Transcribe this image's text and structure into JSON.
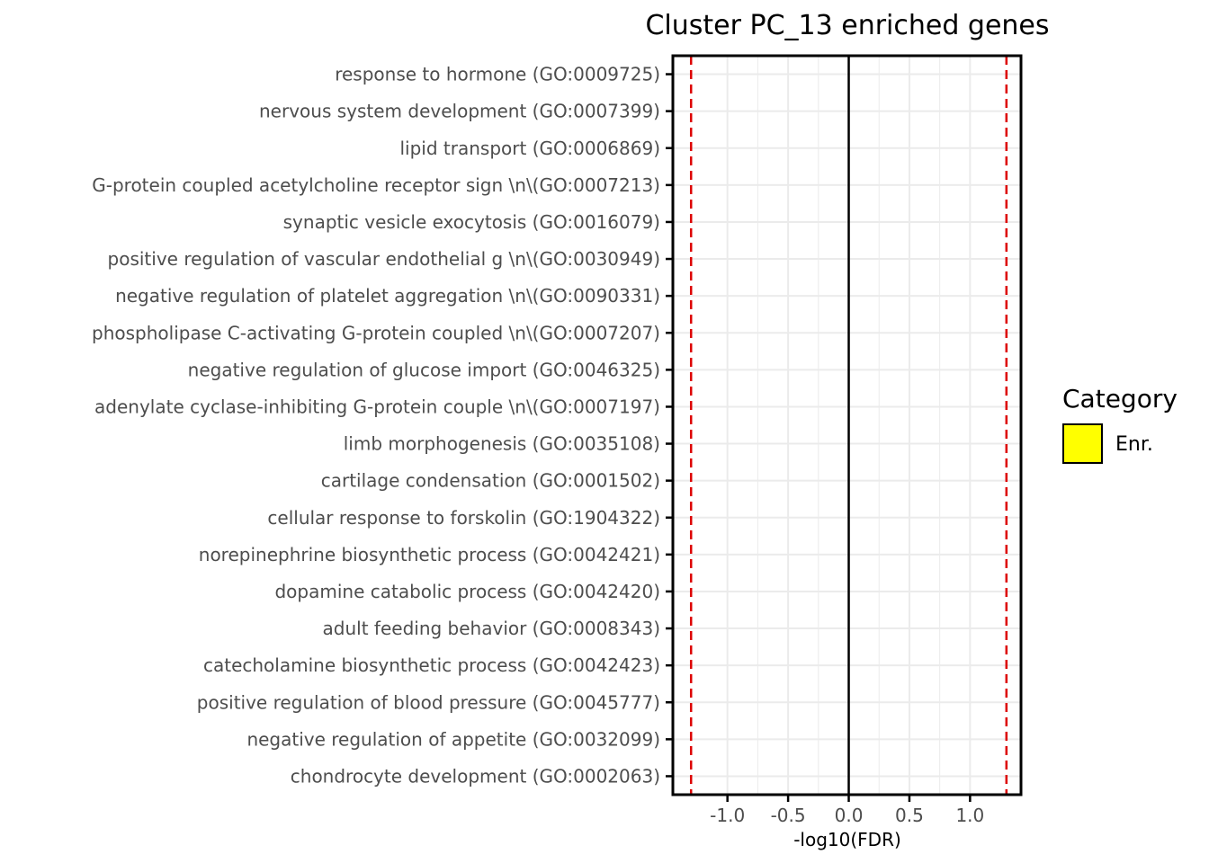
{
  "chart_data": {
    "type": "bar",
    "title": "Cluster PC_13 enriched genes",
    "xlabel": "-log10(FDR)",
    "ylabel": "",
    "xlim": [
      -1.45,
      1.42
    ],
    "x_ticks": [
      "-1.0",
      "-0.5",
      "0.0",
      "0.5",
      "1.0"
    ],
    "x_tick_values": [
      -1.0,
      -0.5,
      0.0,
      0.5,
      1.0
    ],
    "threshold_lines": [
      -1.3,
      1.3
    ],
    "zero_line": 0,
    "grid": true,
    "categories": [
      "response to hormone (GO:0009725)",
      "nervous system development (GO:0007399)",
      "lipid transport (GO:0006869)",
      "G-protein coupled acetylcholine receptor sign \\n\\(GO:0007213)",
      "synaptic vesicle exocytosis (GO:0016079)",
      "positive regulation of vascular endothelial g \\n\\(GO:0030949)",
      "negative regulation of platelet aggregation  \\n\\(GO:0090331)",
      "phospholipase C-activating G-protein coupled  \\n\\(GO:0007207)",
      "negative regulation of glucose import (GO:0046325)",
      "adenylate cyclase-inhibiting G-protein couple \\n\\(GO:0007197)",
      "limb morphogenesis (GO:0035108)",
      "cartilage condensation (GO:0001502)",
      "cellular response to forskolin (GO:1904322)",
      "norepinephrine biosynthetic process (GO:0042421)",
      "dopamine catabolic process (GO:0042420)",
      "adult feeding behavior (GO:0008343)",
      "catecholamine biosynthetic process (GO:0042423)",
      "positive regulation of blood pressure (GO:0045777)",
      "negative regulation of appetite (GO:0032099)",
      "chondrocyte development (GO:0002063)"
    ],
    "series": [
      {
        "name": "Enr.",
        "color": "#ffff00",
        "values": [
          0,
          0,
          0,
          0,
          0,
          0,
          0,
          0,
          0,
          0,
          0,
          0,
          0,
          0,
          0,
          0,
          0,
          0,
          0,
          0
        ]
      }
    ],
    "legend": {
      "title": "Category",
      "placement": "right",
      "entries": [
        {
          "label": "Enr.",
          "color": "#ffff00"
        }
      ]
    },
    "colors": {
      "threshold": "#dd0000",
      "zero": "#000000",
      "grid": "#ebebeb"
    }
  }
}
